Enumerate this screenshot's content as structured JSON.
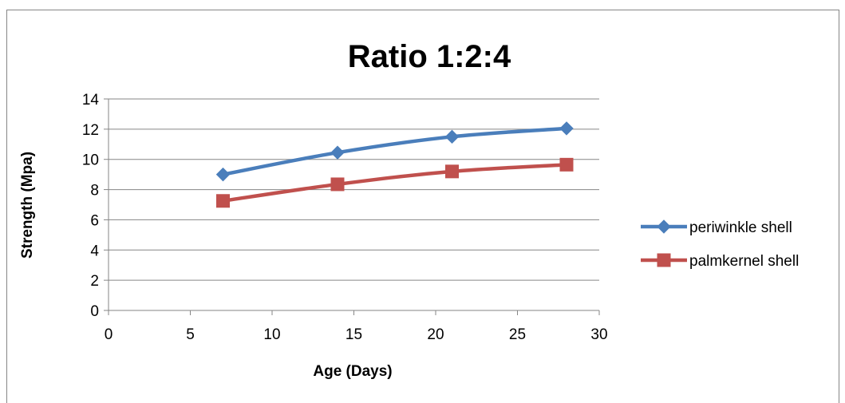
{
  "chart_data": {
    "type": "line",
    "title": "Ratio 1:2:4",
    "xlabel": "Age (Days)",
    "ylabel": "Strength (Mpa)",
    "xlim": [
      0,
      30
    ],
    "ylim": [
      0,
      14
    ],
    "xticks": [
      0,
      5,
      10,
      15,
      20,
      25,
      30
    ],
    "yticks": [
      0,
      2,
      4,
      6,
      8,
      10,
      12,
      14
    ],
    "grid": "horizontal",
    "legend_position": "right",
    "series": [
      {
        "name": "periwinkle shell",
        "color": "#4a7ebb",
        "marker": "diamond",
        "x": [
          7,
          14,
          21,
          28
        ],
        "y": [
          9.0,
          10.45,
          11.5,
          12.05
        ]
      },
      {
        "name": "palmkernel shell",
        "color": "#c0504d",
        "marker": "square",
        "x": [
          7,
          14,
          21,
          28
        ],
        "y": [
          7.25,
          8.35,
          9.2,
          9.65
        ]
      }
    ]
  }
}
